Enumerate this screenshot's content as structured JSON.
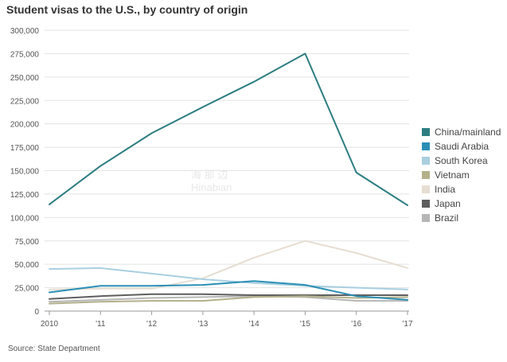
{
  "chart_data": {
    "type": "line",
    "title": "Student visas to the U.S., by country of origin",
    "source": "Source: State Department",
    "categories": [
      "2010",
      "'11",
      "'12",
      "'13",
      "'14",
      "'15",
      "'16",
      "'17"
    ],
    "ylim": [
      0,
      300000
    ],
    "yticks": [
      0,
      25000,
      50000,
      75000,
      100000,
      125000,
      150000,
      175000,
      200000,
      225000,
      250000,
      275000,
      300000
    ],
    "ytick_labels": [
      "0",
      "25,000",
      "50,000",
      "75,000",
      "100,000",
      "125,000",
      "150,000",
      "175,000",
      "200,000",
      "225,000",
      "250,000",
      "275,000",
      "300,000"
    ],
    "grid": true,
    "legend_position": "right",
    "series": [
      {
        "name": "China/mainland",
        "color": "#2d7d80",
        "values": [
          114000,
          155000,
          190000,
          218000,
          245000,
          275000,
          148000,
          113000
        ]
      },
      {
        "name": "Saudi Arabia",
        "color": "#2a8fb5",
        "values": [
          20000,
          27000,
          27000,
          28000,
          32000,
          28000,
          16000,
          12000
        ]
      },
      {
        "name": "South Korea",
        "color": "#a9cfe0",
        "values": [
          45000,
          46000,
          40000,
          34000,
          30000,
          27000,
          25000,
          23000
        ]
      },
      {
        "name": "Vietnam",
        "color": "#b3b08a",
        "values": [
          8000,
          10000,
          11000,
          11000,
          15000,
          16000,
          14000,
          15000
        ]
      },
      {
        "name": "India",
        "color": "#e6ddd2",
        "values": [
          23000,
          24000,
          24000,
          35000,
          57000,
          75000,
          62000,
          46000
        ]
      },
      {
        "name": "Japan",
        "color": "#5e5e5e",
        "values": [
          13000,
          16000,
          18000,
          18000,
          17000,
          17000,
          17000,
          17000
        ]
      },
      {
        "name": "Brazil",
        "color": "#b6b6b6",
        "values": [
          10000,
          12000,
          14000,
          15000,
          16000,
          15000,
          11000,
          11000
        ]
      }
    ]
  },
  "watermark": {
    "line1": "海 那 边",
    "line2": "Hinabian"
  }
}
